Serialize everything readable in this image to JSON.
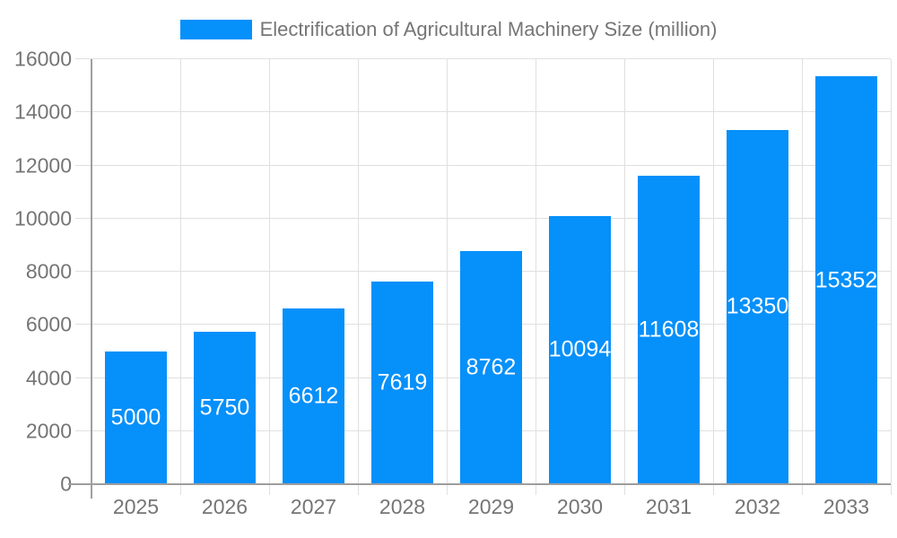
{
  "chart_data": {
    "type": "bar",
    "title": "Electrification of Agricultural Machinery Size (million)",
    "categories": [
      "2025",
      "2026",
      "2027",
      "2028",
      "2029",
      "2030",
      "2031",
      "2032",
      "2033"
    ],
    "values": [
      5000,
      5750,
      6612,
      7619,
      8762,
      10094,
      11608,
      13350,
      15352
    ],
    "xlabel": "",
    "ylabel": "",
    "ylim": [
      0,
      16000
    ],
    "ytick_step": 2000,
    "ytick_labels": [
      "0",
      "2000",
      "4000",
      "6000",
      "8000",
      "10000",
      "12000",
      "14000",
      "16000"
    ],
    "grid": true,
    "legend_position": "top",
    "value_labels": "inside-center",
    "colors": {
      "bar": "#0690fa",
      "value_label": "#ffffff",
      "tick_label": "#757575",
      "gridline": "#e0e0e0",
      "axis_line": "#9e9e9e",
      "background": "#ffffff"
    }
  }
}
